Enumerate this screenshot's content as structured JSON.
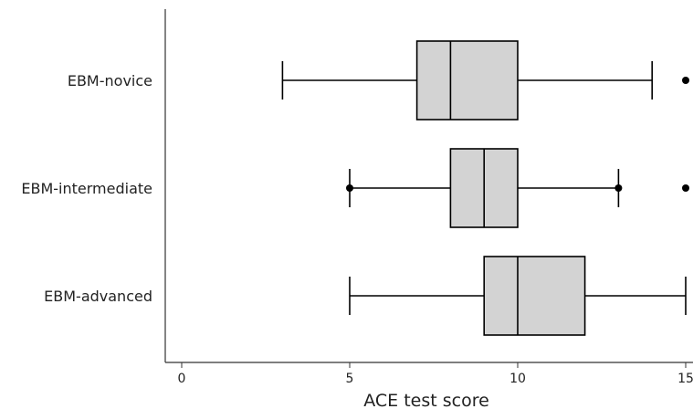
{
  "chart_data": {
    "type": "boxplot",
    "orientation": "horizontal",
    "xlabel": "ACE test score",
    "ylabel": "",
    "xlim": [
      0,
      15
    ],
    "xticks": [
      0,
      5,
      10,
      15
    ],
    "grid": false,
    "box_color": "#d3d3d3",
    "line_color": "#000000",
    "categories": [
      "EBM-novice",
      "EBM-intermediate",
      "EBM-advanced"
    ],
    "boxes": [
      {
        "category": "EBM-novice",
        "whisker_low": 3,
        "q1": 7,
        "median": 8,
        "q3": 10,
        "whisker_high": 14,
        "outliers": [
          15
        ]
      },
      {
        "category": "EBM-intermediate",
        "whisker_low": 5,
        "q1": 8,
        "median": 9,
        "q3": 10,
        "whisker_high": 13,
        "outliers": [
          5,
          13,
          15
        ]
      },
      {
        "category": "EBM-advanced",
        "whisker_low": 5,
        "q1": 9,
        "median": 10,
        "q3": 12,
        "whisker_high": 15,
        "outliers": []
      }
    ]
  }
}
